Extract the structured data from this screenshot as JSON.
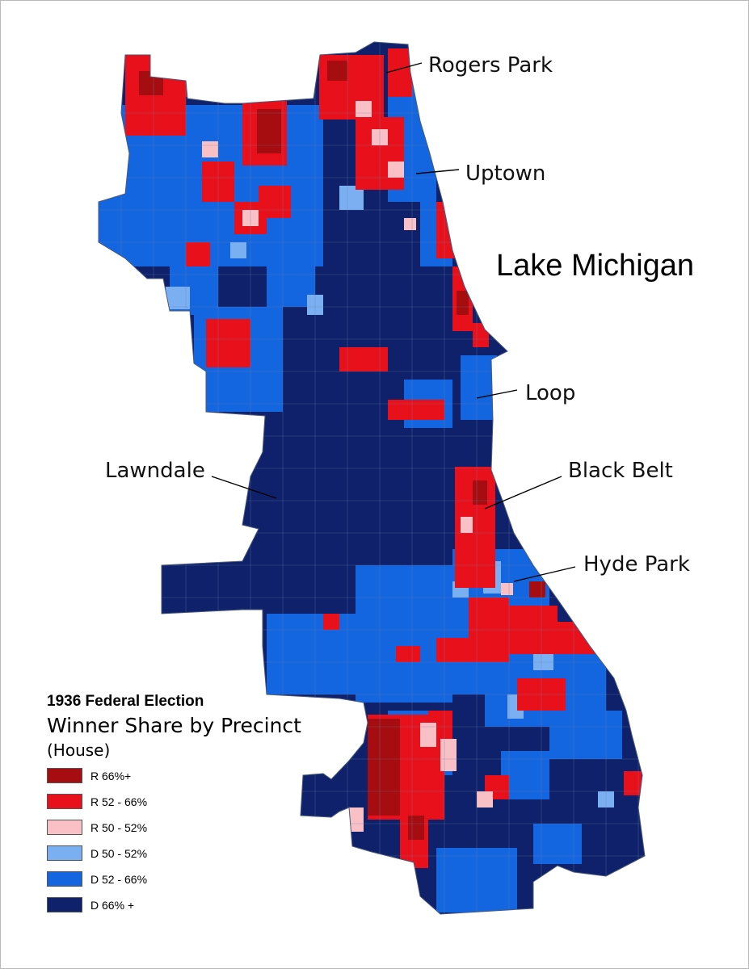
{
  "map": {
    "water_label": "Lake Michigan",
    "neighborhoods": [
      {
        "id": "rogers-park",
        "name": "Rogers Park"
      },
      {
        "id": "uptown",
        "name": "Uptown"
      },
      {
        "id": "loop",
        "name": "Loop"
      },
      {
        "id": "lawndale",
        "name": "Lawndale"
      },
      {
        "id": "black-belt",
        "name": "Black Belt"
      },
      {
        "id": "hyde-park",
        "name": "Hyde Park"
      }
    ]
  },
  "legend": {
    "title": "1936 Federal Election",
    "subtitle": "Winner Share by Precinct",
    "note": "(House)",
    "items": [
      {
        "label": "R 66%+",
        "color": "#a50d10"
      },
      {
        "label": "R 52 - 66%",
        "color": "#e8101b"
      },
      {
        "label": "R 50 - 52%",
        "color": "#f9c0c6"
      },
      {
        "label": "D 50 - 52%",
        "color": "#7ab0f2"
      },
      {
        "label": "D 52 - 66%",
        "color": "#1366e0"
      },
      {
        "label": "D 66% +",
        "color": "#10216b"
      }
    ]
  }
}
